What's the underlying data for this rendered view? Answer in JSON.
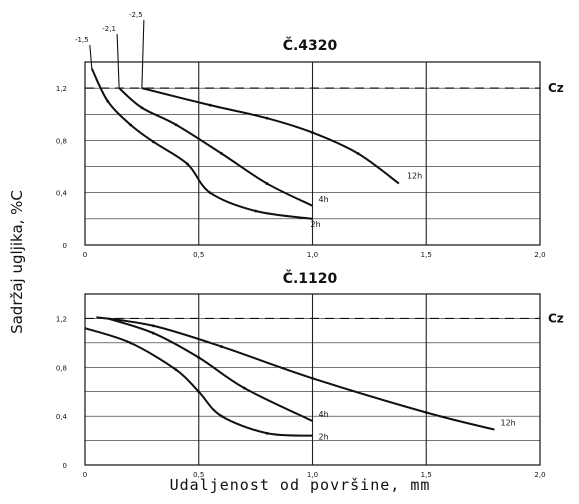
{
  "figure": {
    "ylabel": "Sadržaj ugljika, %C",
    "xlabel": "Udaljenost od površine, mm",
    "reference_line_label": "Cz"
  },
  "chart_data": [
    {
      "type": "line",
      "title": "Č.4320",
      "xlabel": "Udaljenost od površine, mm",
      "ylabel": "Sadržaj ugljika, %C",
      "xlim": [
        0,
        2.0
      ],
      "ylim": [
        0,
        1.4
      ],
      "x_ticks": [
        "0",
        "0,5",
        "1,0",
        "1,5",
        "2,0"
      ],
      "y_ticks": [
        "0",
        "0,4",
        "0,8",
        "1,2"
      ],
      "grid": true,
      "reference_line": {
        "label": "Cz",
        "y": 1.2,
        "style": "dashed"
      },
      "series": [
        {
          "name": "12h",
          "label": "12h",
          "points": [
            [
              0.25,
              1.2
            ],
            [
              0.55,
              1.07
            ],
            [
              0.8,
              0.97
            ],
            [
              1.0,
              0.86
            ],
            [
              1.2,
              0.7
            ],
            [
              1.38,
              0.47
            ]
          ]
        },
        {
          "name": "4h",
          "label": "4h",
          "points": [
            [
              0.15,
              1.2
            ],
            [
              0.25,
              1.05
            ],
            [
              0.4,
              0.92
            ],
            [
              0.6,
              0.7
            ],
            [
              0.8,
              0.47
            ],
            [
              1.0,
              0.3
            ]
          ]
        },
        {
          "name": "2h",
          "label": "2h",
          "points": [
            [
              0.03,
              1.35
            ],
            [
              0.1,
              1.1
            ],
            [
              0.2,
              0.92
            ],
            [
              0.3,
              0.79
            ],
            [
              0.45,
              0.62
            ],
            [
              0.55,
              0.4
            ],
            [
              0.75,
              0.26
            ],
            [
              1.0,
              0.2
            ]
          ]
        }
      ],
      "annotations": [
        {
          "text": "-1,5",
          "x": 0.03
        },
        {
          "text": "-2,1",
          "x": 0.15
        },
        {
          "text": "-2,5",
          "x": 0.25
        }
      ]
    },
    {
      "type": "line",
      "title": "Č.1120",
      "xlabel": "Udaljenost od površine, mm",
      "ylabel": "Sadržaj ugljika, %C",
      "xlim": [
        0,
        2.0
      ],
      "ylim": [
        0,
        1.4
      ],
      "x_ticks": [
        "0",
        "0,5",
        "1,0",
        "1,5",
        "2,0"
      ],
      "y_ticks": [
        "0",
        "0,4",
        "0,8",
        "1,2"
      ],
      "grid": true,
      "reference_line": {
        "label": "Cz",
        "y": 1.2,
        "style": "dashed"
      },
      "series": [
        {
          "name": "12h",
          "label": "12h",
          "points": [
            [
              0.05,
              1.21
            ],
            [
              0.3,
              1.14
            ],
            [
              0.6,
              0.97
            ],
            [
              1.0,
              0.71
            ],
            [
              1.5,
              0.43
            ],
            [
              1.8,
              0.29
            ]
          ]
        },
        {
          "name": "4h",
          "label": "4h",
          "points": [
            [
              0.1,
              1.2
            ],
            [
              0.3,
              1.08
            ],
            [
              0.5,
              0.88
            ],
            [
              0.7,
              0.63
            ],
            [
              1.0,
              0.36
            ]
          ]
        },
        {
          "name": "2h",
          "label": "2h",
          "points": [
            [
              0.0,
              1.12
            ],
            [
              0.2,
              1.0
            ],
            [
              0.4,
              0.78
            ],
            [
              0.5,
              0.6
            ],
            [
              0.6,
              0.4
            ],
            [
              0.8,
              0.26
            ],
            [
              1.0,
              0.24
            ]
          ]
        }
      ]
    }
  ]
}
